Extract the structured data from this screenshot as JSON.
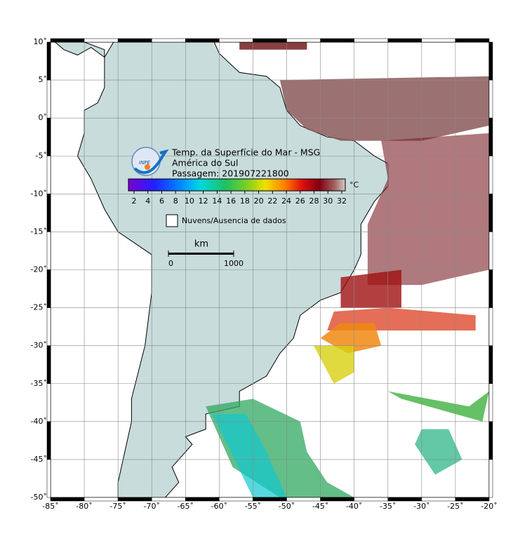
{
  "title_lines": [
    "Temp. da Superfície do Mar - MSG",
    "América do Sul",
    "Passagem: 201907221800"
  ],
  "logo_text": "INPE",
  "colorbar": {
    "unit": "°C",
    "ticks": [
      2,
      4,
      6,
      8,
      10,
      12,
      14,
      16,
      18,
      20,
      22,
      24,
      26,
      28,
      30,
      32
    ]
  },
  "legend": {
    "label": "Nuvens/Ausencia de dados"
  },
  "scale_bar": {
    "unit": "km",
    "ticks": [
      0,
      1000
    ]
  },
  "axes": {
    "lon_ticks": [
      {
        "value": -85,
        "label": "-85˚"
      },
      {
        "value": -80,
        "label": "-80˚"
      },
      {
        "value": -75,
        "label": "-75˚"
      },
      {
        "value": -70,
        "label": "-70˚"
      },
      {
        "value": -65,
        "label": "-65˚"
      },
      {
        "value": -60,
        "label": "-60˚"
      },
      {
        "value": -55,
        "label": "-55˚"
      },
      {
        "value": -50,
        "label": "-50˚"
      },
      {
        "value": -45,
        "label": "-45˚"
      },
      {
        "value": -40,
        "label": "-40˚"
      },
      {
        "value": -35,
        "label": "-35˚"
      },
      {
        "value": -30,
        "label": "-30˚"
      },
      {
        "value": -25,
        "label": "-25˚"
      },
      {
        "value": -20,
        "label": "-20˚"
      }
    ],
    "lat_ticks": [
      {
        "value": 10,
        "label": "10˚"
      },
      {
        "value": 5,
        "label": "5˚"
      },
      {
        "value": 0,
        "label": "0˚"
      },
      {
        "value": -5,
        "label": "-5˚"
      },
      {
        "value": -10,
        "label": "-10˚"
      },
      {
        "value": -15,
        "label": "-15˚"
      },
      {
        "value": -20,
        "label": "-20˚"
      },
      {
        "value": -25,
        "label": "-25˚"
      },
      {
        "value": -30,
        "label": "-30˚"
      },
      {
        "value": -35,
        "label": "-35˚"
      },
      {
        "value": -40,
        "label": "-40˚"
      },
      {
        "value": -45,
        "label": "-45˚"
      },
      {
        "value": -50,
        "label": "-50˚"
      }
    ]
  }
}
